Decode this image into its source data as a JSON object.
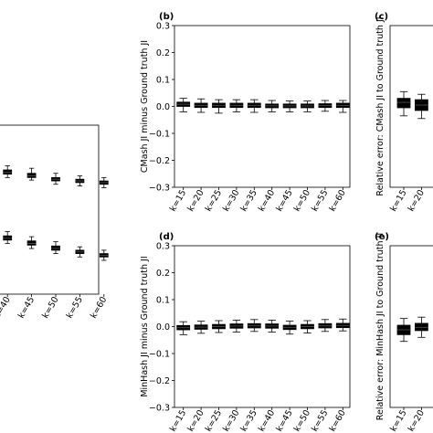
{
  "chart_data": [
    {
      "type": "box",
      "panel_label": "",
      "xlabel": "",
      "ylabel": "",
      "categories": [
        "k=40",
        "k=45",
        "k=50",
        "k=55",
        "k=60"
      ],
      "series": [
        {
          "medians": [
            0.72,
            0.7,
            0.68,
            0.67,
            0.66
          ],
          "q1": [
            0.71,
            0.69,
            0.67,
            0.66,
            0.65
          ],
          "q3": [
            0.735,
            0.715,
            0.69,
            0.68,
            0.67
          ],
          "whisker_low": [
            0.69,
            0.675,
            0.65,
            0.64,
            0.63
          ],
          "whisker_high": [
            0.76,
            0.745,
            0.715,
            0.7,
            0.69
          ]
        },
        {
          "medians": [
            0.33,
            0.3,
            0.27,
            0.25,
            0.23
          ],
          "q1": [
            0.32,
            0.29,
            0.26,
            0.24,
            0.22
          ],
          "q3": [
            0.345,
            0.315,
            0.285,
            0.26,
            0.24
          ],
          "whisker_low": [
            0.3,
            0.27,
            0.24,
            0.22,
            0.2
          ],
          "whisker_high": [
            0.37,
            0.34,
            0.31,
            0.28,
            0.26
          ]
        }
      ]
    },
    {
      "type": "box",
      "panel_label": "(b)",
      "ylabel": "CMash JI minus Ground truth JI",
      "ylim": [
        -0.3,
        0.3
      ],
      "yticks": [
        "0.3",
        "0.2",
        "0.1",
        "0.0",
        "−0.1",
        "−0.2",
        "−0.3"
      ],
      "categories": [
        "k=15",
        "k=20",
        "k=25",
        "k=30",
        "k=35",
        "k=40",
        "k=45",
        "k=50",
        "k=55",
        "k=60"
      ],
      "medians": [
        0.008,
        0.004,
        0.004,
        0.004,
        0.004,
        0.002,
        0.002,
        0.002,
        0.003,
        0.004
      ],
      "q1": [
        0.0,
        -0.004,
        -0.004,
        -0.004,
        -0.004,
        -0.005,
        -0.005,
        -0.005,
        -0.004,
        -0.004
      ],
      "q3": [
        0.016,
        0.012,
        0.012,
        0.012,
        0.012,
        0.009,
        0.009,
        0.009,
        0.01,
        0.012
      ],
      "whisker_low": [
        -0.02,
        -0.022,
        -0.025,
        -0.02,
        -0.022,
        -0.02,
        -0.02,
        -0.02,
        -0.018,
        -0.022
      ],
      "whisker_high": [
        0.03,
        0.028,
        0.025,
        0.025,
        0.025,
        0.022,
        0.02,
        0.02,
        0.022,
        0.022
      ]
    },
    {
      "type": "box",
      "panel_label": "(c)",
      "ylabel": "Relative error: CMash JI to Ground truth JI",
      "ylim": [
        -0.3,
        0.3
      ],
      "categories": [
        "k=15",
        "k=20"
      ],
      "medians": [
        0.015,
        0.005
      ],
      "q1": [
        -0.005,
        -0.015
      ],
      "q3": [
        0.03,
        0.025
      ],
      "whisker_low": [
        -0.035,
        -0.045
      ],
      "whisker_high": [
        0.055,
        0.045
      ]
    },
    {
      "type": "box",
      "panel_label": "(d)",
      "ylabel": "MinHash JI minus Ground truth JI",
      "ylim": [
        -0.3,
        0.3
      ],
      "yticks": [
        "0.3",
        "0.2",
        "0.1",
        "0.0",
        "−0.1",
        "−0.2",
        "−0.3"
      ],
      "categories": [
        "k=15",
        "k=20",
        "k=25",
        "k=30",
        "k=35",
        "k=40",
        "k=45",
        "k=50",
        "k=55",
        "k=60"
      ],
      "medians": [
        -0.004,
        -0.002,
        0.0,
        0.002,
        0.003,
        0.002,
        -0.003,
        0.0,
        0.003,
        0.004
      ],
      "q1": [
        -0.012,
        -0.01,
        -0.008,
        -0.006,
        -0.005,
        -0.006,
        -0.011,
        -0.008,
        -0.005,
        -0.004
      ],
      "q3": [
        0.004,
        0.006,
        0.008,
        0.01,
        0.011,
        0.01,
        0.005,
        0.008,
        0.011,
        0.012
      ],
      "whisker_low": [
        -0.03,
        -0.025,
        -0.022,
        -0.02,
        -0.018,
        -0.02,
        -0.028,
        -0.024,
        -0.018,
        -0.016
      ],
      "whisker_high": [
        0.018,
        0.02,
        0.022,
        0.024,
        0.026,
        0.024,
        0.02,
        0.022,
        0.026,
        0.028
      ]
    },
    {
      "type": "box",
      "panel_label": "(e)",
      "ylabel": "Relative error: MinHash JI to Ground truth JI",
      "ylim": [
        -0.3,
        0.3
      ],
      "categories": [
        "k=15",
        "k=20"
      ],
      "medians": [
        -0.012,
        -0.003
      ],
      "q1": [
        -0.03,
        -0.015
      ],
      "q3": [
        0.005,
        0.012
      ],
      "whisker_low": [
        -0.055,
        -0.04
      ],
      "whisker_high": [
        0.03,
        0.035
      ]
    }
  ]
}
